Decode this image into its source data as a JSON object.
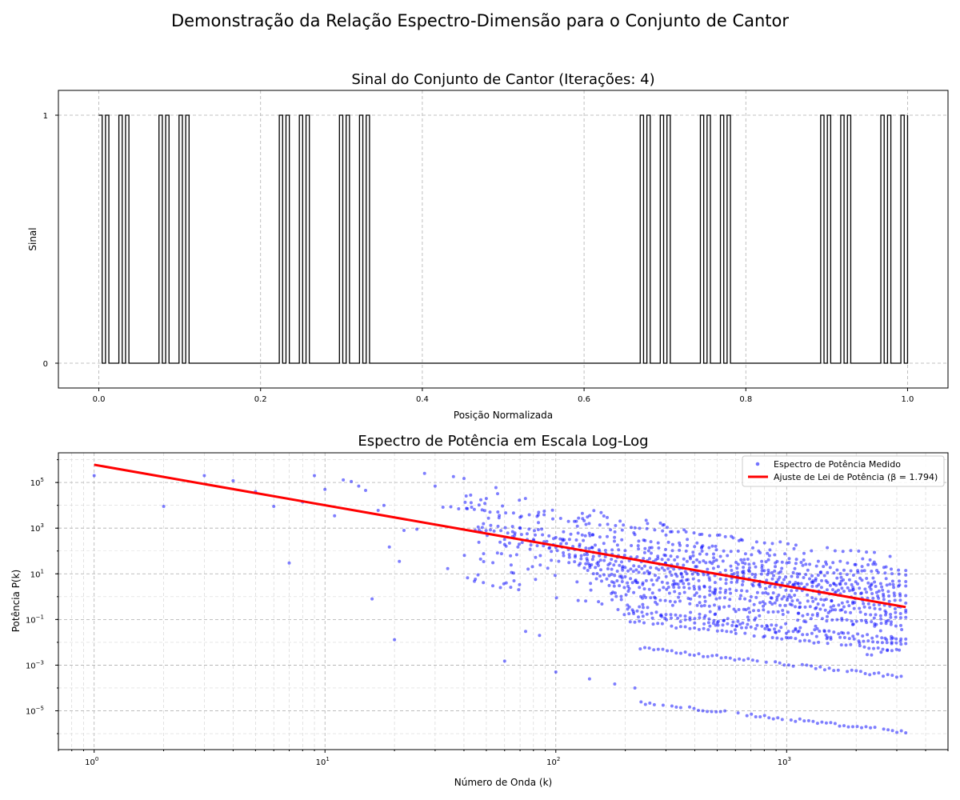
{
  "figure": {
    "suptitle": "Demonstração da Relação Espectro-Dimensão para o Conjunto de Cantor"
  },
  "chart_data": [
    {
      "type": "line",
      "title": "Sinal do Conjunto de Cantor (Iterações: 4)",
      "xlabel": "Posição Normalizada",
      "ylabel": "Sinal",
      "xlim": [
        -0.05,
        1.05
      ],
      "ylim": [
        -0.1,
        1.1
      ],
      "xticks": [
        0.0,
        0.2,
        0.4,
        0.6,
        0.8,
        1.0
      ],
      "xtick_labels": [
        "0.0",
        "0.2",
        "0.4",
        "0.6",
        "0.8",
        "1.0"
      ],
      "yticks": [
        0,
        1
      ],
      "ytick_labels": [
        "0",
        "1"
      ],
      "grid": true,
      "line_color": "#000000",
      "cantor_iterations": 4
    },
    {
      "type": "scatter",
      "title": "Espectro de Potência em Escala Log-Log",
      "xlabel": "Número de Onda (k)",
      "ylabel": "Potência P(k)",
      "xscale": "log",
      "yscale": "log",
      "xlim": [
        0.7,
        5000
      ],
      "ylim": [
        2e-07,
        2000000.0
      ],
      "xticks": [
        1,
        10,
        100,
        1000
      ],
      "xtick_labels": [
        {
          "base": "10",
          "exp": "0"
        },
        {
          "base": "10",
          "exp": "1"
        },
        {
          "base": "10",
          "exp": "2"
        },
        {
          "base": "10",
          "exp": "3"
        }
      ],
      "yticks": [
        1e-05,
        0.001,
        0.1,
        10,
        1000,
        100000
      ],
      "ytick_labels": [
        {
          "base": "10",
          "exp": "−5"
        },
        {
          "base": "10",
          "exp": "−3"
        },
        {
          "base": "10",
          "exp": "−1"
        },
        {
          "base": "10",
          "exp": "1"
        },
        {
          "base": "10",
          "exp": "3"
        },
        {
          "base": "10",
          "exp": "5"
        }
      ],
      "grid": true,
      "legend_position": "top-right",
      "series": [
        {
          "name": "Espectro de Potência Medido",
          "kind": "scatter",
          "color": "#0000ff",
          "k_range": [
            1,
            3280
          ],
          "bands_at_k3280": [
            55,
            15,
            8,
            4.5,
            3,
            2,
            1.3,
            0.9,
            0.6,
            0.3,
            0.2,
            0.12,
            0.05,
            0.012,
            0.008,
            0.004,
            0.0003,
            1.2e-06
          ],
          "points": [
            [
              1,
              200000
            ],
            [
              2,
              9000
            ],
            [
              3,
              200000
            ],
            [
              4,
              120000
            ],
            [
              5,
              40000
            ],
            [
              6,
              9000
            ],
            [
              7,
              30
            ],
            [
              8,
              14000
            ],
            [
              9,
              200000
            ],
            [
              10,
              50000
            ],
            [
              11,
              3500
            ],
            [
              12,
              130000
            ],
            [
              13,
              110000
            ],
            [
              14,
              70000
            ],
            [
              15,
              45000
            ],
            [
              16,
              0.8
            ],
            [
              17,
              6000
            ],
            [
              18,
              10000
            ],
            [
              19,
              150
            ],
            [
              20,
              0.013
            ],
            [
              21,
              35
            ],
            [
              22,
              800
            ],
            [
              25,
              900
            ],
            [
              27,
              250000
            ],
            [
              30,
              70000
            ],
            [
              34,
              17
            ],
            [
              36,
              180000
            ],
            [
              40,
              150000
            ],
            [
              46,
              9
            ],
            [
              50,
              20000
            ],
            [
              55,
              60000
            ],
            [
              60,
              0.0015
            ],
            [
              61,
              4
            ],
            [
              65,
              700
            ],
            [
              70,
              3000
            ],
            [
              74,
              0.03
            ],
            [
              85,
              0.02
            ],
            [
              100,
              0.0005
            ],
            [
              140,
              0.00025
            ],
            [
              180,
              0.00015
            ],
            [
              220,
              0.0001
            ]
          ]
        },
        {
          "name": "Ajuste de Lei de Potência (β = 1.794)",
          "kind": "line",
          "color": "#ff0000",
          "x": [
            1,
            3280
          ],
          "y": [
            600000,
            0.35
          ]
        }
      ]
    }
  ]
}
